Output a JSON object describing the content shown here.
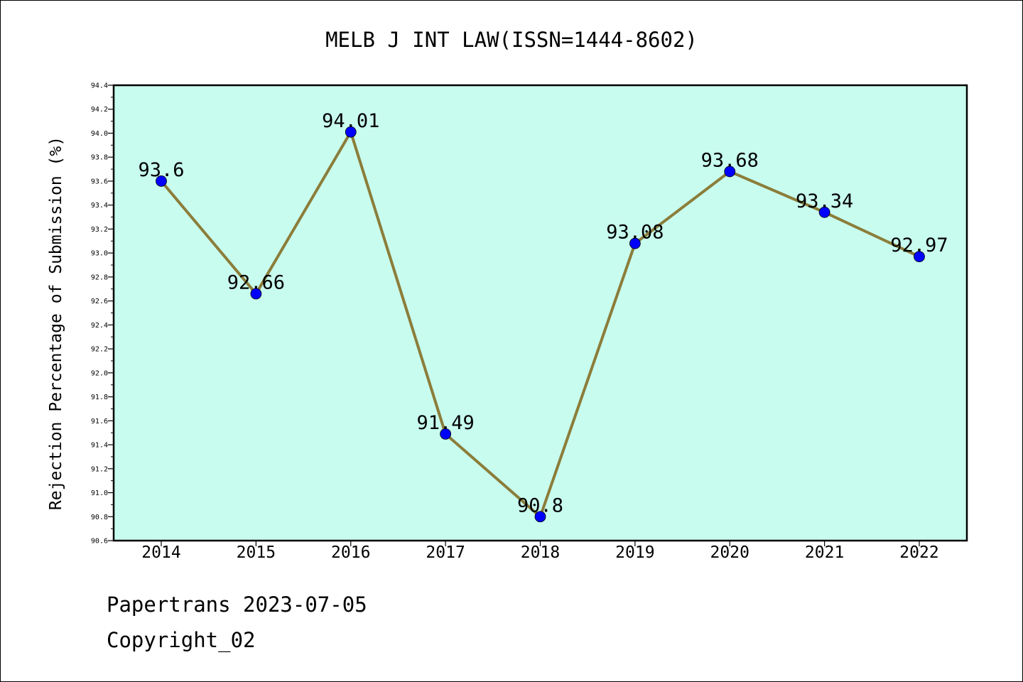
{
  "chart_data": {
    "type": "line",
    "title": "MELB J INT LAW(ISSN=1444-8602)",
    "xlabel": "",
    "ylabel": "Rejection Percentage of Submission (%)",
    "categories": [
      "2014",
      "2015",
      "2016",
      "2017",
      "2018",
      "2019",
      "2020",
      "2021",
      "2022"
    ],
    "series": [
      {
        "values": [
          93.6,
          92.66,
          94.01,
          91.49,
          90.8,
          93.08,
          93.68,
          93.34,
          92.97
        ],
        "data_labels": [
          "93.6",
          "92.66",
          "94.01",
          "91.49",
          "90.8",
          "93.08",
          "93.68",
          "93.34",
          "92.97"
        ]
      }
    ],
    "ylim": [
      90.6,
      94.4
    ],
    "yticks": [
      "90.6",
      "90.8",
      "91.0",
      "91.2",
      "91.4",
      "91.6",
      "91.8",
      "92.0",
      "92.2",
      "92.4",
      "92.6",
      "92.8",
      "93.0",
      "93.2",
      "93.4",
      "93.6",
      "93.8",
      "94.0",
      "94.2",
      "94.4"
    ],
    "grid": false,
    "legend": "none",
    "colors": {
      "plot_background": "#c8fcee",
      "line": "#8b7d3a",
      "marker": "#0000ff",
      "axis": "#000000"
    }
  },
  "footer": {
    "line1": "Papertrans 2023-07-05",
    "line2": "Copyright_02"
  }
}
